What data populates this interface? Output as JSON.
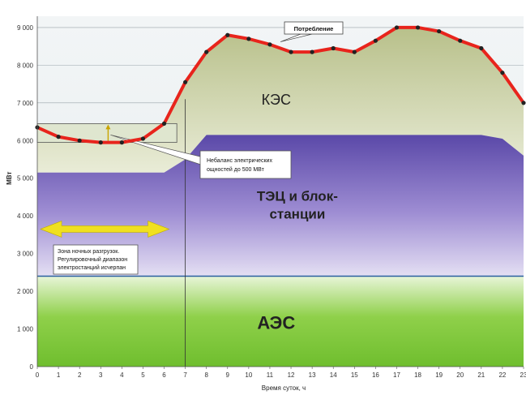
{
  "chart_data": {
    "type": "area",
    "xlabel": "Время суток, ч",
    "ylabel": "МВт",
    "xlim": [
      0,
      23
    ],
    "ylim": [
      0,
      9300
    ],
    "x_ticks": [
      0,
      1,
      2,
      3,
      4,
      5,
      6,
      7,
      8,
      9,
      10,
      11,
      12,
      13,
      14,
      15,
      16,
      17,
      18,
      19,
      20,
      21,
      22,
      23
    ],
    "y_ticks": [
      0,
      1000,
      2000,
      3000,
      4000,
      5000,
      6000,
      7000,
      8000,
      9000
    ],
    "y_tick_labels": [
      "0",
      "1 000",
      "2 000",
      "3 000",
      "4 000",
      "5 000",
      "6 000",
      "7 000",
      "8 000",
      "9 000"
    ],
    "grid": true,
    "series": [
      {
        "name": "Потребление",
        "role": "consumption-line",
        "color": "#e8241c",
        "x": [
          0,
          1,
          2,
          3,
          4,
          5,
          6,
          7,
          8,
          9,
          10,
          11,
          12,
          13,
          14,
          15,
          16,
          17,
          18,
          19,
          20,
          21,
          22,
          23
        ],
        "y": [
          6350,
          6100,
          6000,
          5950,
          5950,
          6050,
          6450,
          7550,
          8350,
          8800,
          8700,
          8550,
          8350,
          8350,
          8450,
          8350,
          8650,
          9000,
          9000,
          8900,
          8650,
          8450,
          7800,
          7000
        ]
      },
      {
        "name": "КЭС",
        "role": "top-area",
        "color": "#c9cfa5"
      },
      {
        "name": "ТЭЦ и блок-станции",
        "role": "middle-area-top",
        "color": "#7a66c0",
        "x": [
          0,
          6,
          7,
          8,
          21,
          22,
          23
        ],
        "y": [
          5150,
          5150,
          5500,
          6150,
          6150,
          6050,
          5600
        ]
      },
      {
        "name": "АЭС",
        "role": "base-area-top",
        "color": "#8cd042",
        "x": [
          0,
          23
        ],
        "y": [
          2400,
          2400
        ]
      }
    ],
    "annotations": {
      "imbalance": "Небаланс электрических мощностей до 500 МВт",
      "night_zone": [
        "Зона ночных разгрузок.",
        "Регулировочный диапазон",
        "электростанций исчерпан"
      ],
      "kes_label": "КЭС",
      "tec_label": [
        "ТЭЦ и блок-",
        "станции"
      ],
      "aes_label": "АЭС"
    },
    "imbalance_band": {
      "y_low": 5950,
      "y_high": 6450,
      "x_from": 0,
      "x_to": 6.6
    },
    "night_zone_arrow": {
      "x_from": 0,
      "x_to": 7,
      "y": 3650,
      "color": "#f0e020"
    },
    "divider_x": 7,
    "colors": {
      "consumption": "#e8241c",
      "consumption_marker": "#222222",
      "kes": "#c9cfa5",
      "tec": "#7a66c0",
      "aes": "#8cd042",
      "nuclear_top_line": "#2a60a0"
    }
  }
}
